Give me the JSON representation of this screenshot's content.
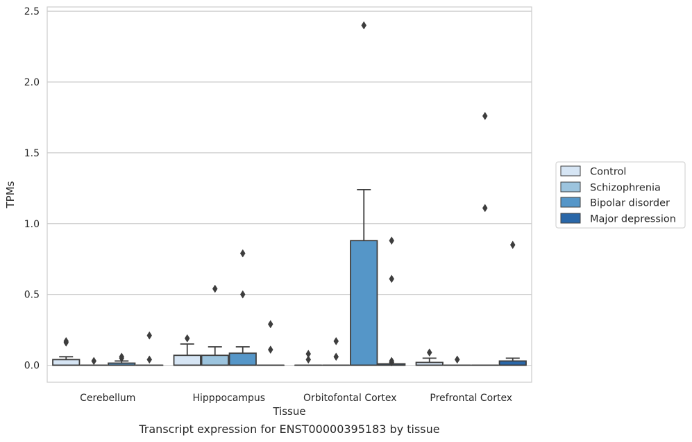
{
  "chart_data": {
    "type": "box",
    "caption": "Transcript expression for ENST00000395183 by tissue",
    "xlabel": "Tissue",
    "ylabel": "TPMs",
    "ylim": [
      -0.12,
      2.53
    ],
    "yticks": [
      "0.0",
      "0.5",
      "1.0",
      "1.5",
      "2.0",
      "2.5"
    ],
    "grid": "horizontal",
    "legend_position": "right",
    "categories": [
      "Cerebellum",
      "Hipppocampus",
      "Orbitofontal Cortex",
      "Prefrontal Cortex"
    ],
    "series": [
      {
        "name": "Control",
        "color": "#d6e5f4",
        "boxes": [
          {
            "q1": 0.0,
            "median": 0.0,
            "q3": 0.04,
            "whisker_low": 0.0,
            "whisker_high": 0.06,
            "outliers": [
              0.16,
              0.17
            ]
          },
          {
            "q1": 0.0,
            "median": 0.0,
            "q3": 0.07,
            "whisker_low": 0.0,
            "whisker_high": 0.15,
            "outliers": [
              0.19
            ]
          },
          {
            "q1": 0.0,
            "median": 0.0,
            "q3": 0.0,
            "whisker_low": 0.0,
            "whisker_high": 0.0,
            "outliers": [
              0.04,
              0.08
            ]
          },
          {
            "q1": 0.0,
            "median": 0.0,
            "q3": 0.02,
            "whisker_low": 0.0,
            "whisker_high": 0.05,
            "outliers": [
              0.09
            ]
          }
        ]
      },
      {
        "name": "Schizophrenia",
        "color": "#9cc4de",
        "boxes": [
          {
            "q1": 0.0,
            "median": 0.0,
            "q3": 0.0,
            "whisker_low": 0.0,
            "whisker_high": 0.0,
            "outliers": [
              0.03
            ]
          },
          {
            "q1": 0.0,
            "median": 0.0,
            "q3": 0.07,
            "whisker_low": 0.0,
            "whisker_high": 0.13,
            "outliers": [
              0.54
            ]
          },
          {
            "q1": 0.0,
            "median": 0.0,
            "q3": 0.0,
            "whisker_low": 0.0,
            "whisker_high": 0.0,
            "outliers": [
              0.06,
              0.17
            ]
          },
          {
            "q1": 0.0,
            "median": 0.0,
            "q3": 0.0,
            "whisker_low": 0.0,
            "whisker_high": 0.0,
            "outliers": [
              0.04
            ]
          }
        ]
      },
      {
        "name": "Bipolar disorder",
        "color": "#5596c8",
        "boxes": [
          {
            "q1": 0.0,
            "median": 0.0,
            "q3": 0.015,
            "whisker_low": 0.0,
            "whisker_high": 0.03,
            "outliers": [
              0.05,
              0.06
            ]
          },
          {
            "q1": 0.0,
            "median": 0.0,
            "q3": 0.085,
            "whisker_low": 0.0,
            "whisker_high": 0.13,
            "outliers": [
              0.5,
              0.79
            ]
          },
          {
            "q1": 0.0,
            "median": 0.0,
            "q3": 0.88,
            "whisker_low": 0.0,
            "whisker_high": 1.24,
            "outliers": [
              2.4
            ]
          },
          {
            "q1": 0.0,
            "median": 0.0,
            "q3": 0.0,
            "whisker_low": 0.0,
            "whisker_high": 0.0,
            "outliers": [
              1.11,
              1.76
            ]
          }
        ]
      },
      {
        "name": "Major depression",
        "color": "#2a67a8",
        "boxes": [
          {
            "q1": 0.0,
            "median": 0.0,
            "q3": 0.0,
            "whisker_low": 0.0,
            "whisker_high": 0.0,
            "outliers": [
              0.04,
              0.21
            ]
          },
          {
            "q1": 0.0,
            "median": 0.0,
            "q3": 0.0,
            "whisker_low": 0.0,
            "whisker_high": 0.0,
            "outliers": [
              0.11,
              0.29
            ]
          },
          {
            "q1": 0.0,
            "median": 0.0,
            "q3": 0.01,
            "whisker_low": 0.0,
            "whisker_high": 0.01,
            "outliers": [
              0.02,
              0.03,
              0.61,
              0.88
            ]
          },
          {
            "q1": 0.0,
            "median": 0.0,
            "q3": 0.03,
            "whisker_low": 0.0,
            "whisker_high": 0.05,
            "outliers": [
              0.85
            ]
          }
        ]
      }
    ],
    "colors": {
      "grid": "#cccccc",
      "frame": "#cccccc",
      "stroke": "#3d3d3d",
      "outlier": "#3d3d3d"
    }
  }
}
